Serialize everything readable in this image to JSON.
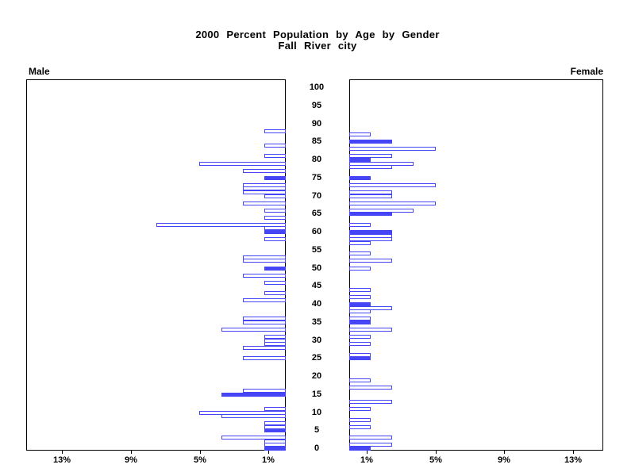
{
  "title": {
    "line1": "2000 Percent Population by Age by Gender",
    "line2": "Fall River city"
  },
  "male_label": "Male",
  "female_label": "Female",
  "age_tick_labels": [
    "100",
    "95",
    "90",
    "85",
    "80",
    "75",
    "70",
    "65",
    "60",
    "55",
    "50",
    "45",
    "40",
    "35",
    "30",
    "25",
    "20",
    "15",
    "10",
    "5",
    "0"
  ],
  "pct_tick_labels_male": [
    "13%",
    "9%",
    "5%",
    "1%"
  ],
  "pct_tick_labels_female": [
    "1%",
    "5%",
    "9%",
    "13%"
  ],
  "colors": {
    "bar_blue": "#4545f5",
    "frame_black": "#000000"
  },
  "chart_data": {
    "type": "bar",
    "variant": "population-pyramid",
    "title": "2000 Percent Population by Age by Gender",
    "subtitle": "Fall River city",
    "unit": "percent of population",
    "age_axis": {
      "min": 0,
      "max": 100,
      "step": 5
    },
    "x_axis": {
      "ticks_percent": [
        1,
        5,
        9,
        13
      ],
      "range_percent": [
        0,
        15
      ],
      "grid": false
    },
    "highlight_note": "solid bars are filled blue; others are hollow with blue outline",
    "series": [
      {
        "name": "Male",
        "side": "left",
        "points": [
          {
            "age": 88,
            "pct": 1.25,
            "solid": false
          },
          {
            "age": 84,
            "pct": 1.25,
            "solid": false
          },
          {
            "age": 81,
            "pct": 1.25,
            "solid": false
          },
          {
            "age": 79,
            "pct": 5.0,
            "solid": false
          },
          {
            "age": 77,
            "pct": 2.5,
            "solid": false
          },
          {
            "age": 75,
            "pct": 1.25,
            "solid": true
          },
          {
            "age": 73,
            "pct": 2.5,
            "solid": false
          },
          {
            "age": 72,
            "pct": 2.5,
            "solid": false
          },
          {
            "age": 71,
            "pct": 2.5,
            "solid": false
          },
          {
            "age": 70,
            "pct": 1.25,
            "solid": false
          },
          {
            "age": 68,
            "pct": 2.5,
            "solid": false
          },
          {
            "age": 66,
            "pct": 1.25,
            "solid": false
          },
          {
            "age": 64,
            "pct": 1.25,
            "solid": false
          },
          {
            "age": 62,
            "pct": 7.5,
            "solid": false
          },
          {
            "age": 61,
            "pct": 1.25,
            "solid": false
          },
          {
            "age": 60,
            "pct": 1.25,
            "solid": true
          },
          {
            "age": 58,
            "pct": 1.25,
            "solid": false
          },
          {
            "age": 53,
            "pct": 2.5,
            "solid": false
          },
          {
            "age": 52,
            "pct": 2.5,
            "solid": false
          },
          {
            "age": 50,
            "pct": 1.25,
            "solid": true
          },
          {
            "age": 48,
            "pct": 2.5,
            "solid": false
          },
          {
            "age": 46,
            "pct": 1.25,
            "solid": false
          },
          {
            "age": 43,
            "pct": 1.25,
            "solid": false
          },
          {
            "age": 41,
            "pct": 2.5,
            "solid": false
          },
          {
            "age": 36,
            "pct": 2.5,
            "solid": false
          },
          {
            "age": 35,
            "pct": 2.5,
            "solid": false
          },
          {
            "age": 33,
            "pct": 3.75,
            "solid": false
          },
          {
            "age": 31,
            "pct": 1.25,
            "solid": false
          },
          {
            "age": 30,
            "pct": 1.25,
            "solid": false
          },
          {
            "age": 29,
            "pct": 1.25,
            "solid": false
          },
          {
            "age": 28,
            "pct": 2.5,
            "solid": false
          },
          {
            "age": 25,
            "pct": 2.5,
            "solid": false
          },
          {
            "age": 16,
            "pct": 2.5,
            "solid": false
          },
          {
            "age": 15,
            "pct": 3.75,
            "solid": true
          },
          {
            "age": 11,
            "pct": 1.25,
            "solid": false
          },
          {
            "age": 10,
            "pct": 5.0,
            "solid": false
          },
          {
            "age": 9,
            "pct": 3.75,
            "solid": false
          },
          {
            "age": 7,
            "pct": 1.25,
            "solid": false
          },
          {
            "age": 6,
            "pct": 1.25,
            "solid": false
          },
          {
            "age": 5,
            "pct": 1.25,
            "solid": true
          },
          {
            "age": 3,
            "pct": 3.75,
            "solid": false
          },
          {
            "age": 2,
            "pct": 1.25,
            "solid": false
          },
          {
            "age": 1,
            "pct": 1.25,
            "solid": false
          },
          {
            "age": 0,
            "pct": 1.25,
            "solid": true
          }
        ]
      },
      {
        "name": "Female",
        "side": "right",
        "points": [
          {
            "age": 87,
            "pct": 1.25,
            "solid": false
          },
          {
            "age": 85,
            "pct": 2.5,
            "solid": true
          },
          {
            "age": 83,
            "pct": 5.0,
            "solid": false
          },
          {
            "age": 81,
            "pct": 2.5,
            "solid": false
          },
          {
            "age": 80,
            "pct": 1.25,
            "solid": true
          },
          {
            "age": 79,
            "pct": 3.75,
            "solid": false
          },
          {
            "age": 78,
            "pct": 2.5,
            "solid": false
          },
          {
            "age": 75,
            "pct": 1.25,
            "solid": true
          },
          {
            "age": 73,
            "pct": 5.0,
            "solid": false
          },
          {
            "age": 71,
            "pct": 2.5,
            "solid": false
          },
          {
            "age": 70,
            "pct": 2.5,
            "solid": false
          },
          {
            "age": 68,
            "pct": 5.0,
            "solid": false
          },
          {
            "age": 66,
            "pct": 3.75,
            "solid": false
          },
          {
            "age": 65,
            "pct": 2.5,
            "solid": true
          },
          {
            "age": 62,
            "pct": 1.25,
            "solid": false
          },
          {
            "age": 60,
            "pct": 2.5,
            "solid": true
          },
          {
            "age": 59,
            "pct": 2.5,
            "solid": false
          },
          {
            "age": 58,
            "pct": 2.5,
            "solid": false
          },
          {
            "age": 57,
            "pct": 1.25,
            "solid": false
          },
          {
            "age": 54,
            "pct": 1.25,
            "solid": false
          },
          {
            "age": 52,
            "pct": 2.5,
            "solid": false
          },
          {
            "age": 50,
            "pct": 1.25,
            "solid": false
          },
          {
            "age": 44,
            "pct": 1.25,
            "solid": false
          },
          {
            "age": 42,
            "pct": 1.25,
            "solid": false
          },
          {
            "age": 40,
            "pct": 1.25,
            "solid": true
          },
          {
            "age": 39,
            "pct": 2.5,
            "solid": false
          },
          {
            "age": 38,
            "pct": 1.25,
            "solid": false
          },
          {
            "age": 36,
            "pct": 1.25,
            "solid": false
          },
          {
            "age": 35,
            "pct": 1.25,
            "solid": true
          },
          {
            "age": 33,
            "pct": 2.5,
            "solid": false
          },
          {
            "age": 31,
            "pct": 1.25,
            "solid": false
          },
          {
            "age": 29,
            "pct": 1.25,
            "solid": false
          },
          {
            "age": 26,
            "pct": 1.25,
            "solid": false
          },
          {
            "age": 25,
            "pct": 1.25,
            "solid": true
          },
          {
            "age": 19,
            "pct": 1.25,
            "solid": false
          },
          {
            "age": 17,
            "pct": 2.5,
            "solid": false
          },
          {
            "age": 13,
            "pct": 2.5,
            "solid": false
          },
          {
            "age": 11,
            "pct": 1.25,
            "solid": false
          },
          {
            "age": 8,
            "pct": 1.25,
            "solid": false
          },
          {
            "age": 6,
            "pct": 1.25,
            "solid": false
          },
          {
            "age": 3,
            "pct": 2.5,
            "solid": false
          },
          {
            "age": 1,
            "pct": 2.5,
            "solid": false
          },
          {
            "age": 0,
            "pct": 1.25,
            "solid": true
          }
        ]
      }
    ]
  }
}
